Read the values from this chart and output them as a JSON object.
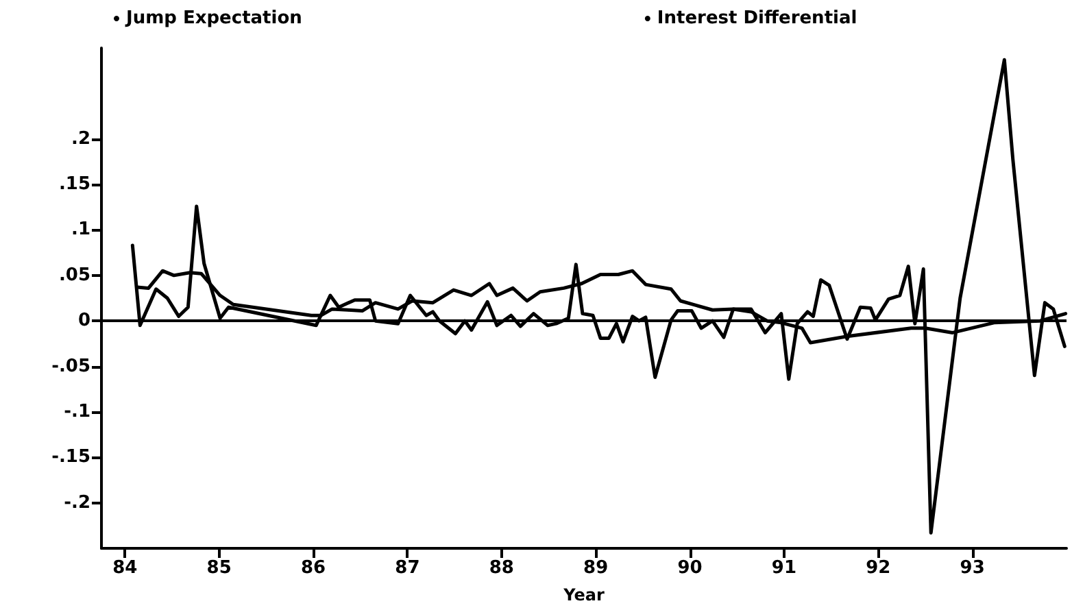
{
  "chart_data": {
    "type": "line",
    "xlabel": "Year",
    "legend": "top",
    "marker": "none",
    "line_style": "solid",
    "grid": false,
    "xlim": [
      83.75,
      94
    ],
    "xticks": [
      {
        "value": 84,
        "label": "84"
      },
      {
        "value": 85,
        "label": "85"
      },
      {
        "value": 86,
        "label": "86"
      },
      {
        "value": 87,
        "label": "87"
      },
      {
        "value": 88,
        "label": "88"
      },
      {
        "value": 89,
        "label": "89"
      },
      {
        "value": 90,
        "label": "90"
      },
      {
        "value": 91,
        "label": "91"
      },
      {
        "value": 92,
        "label": "92"
      },
      {
        "value": 93,
        "label": "93"
      }
    ],
    "ylim": [
      -0.25,
      0.3
    ],
    "yticks": [
      {
        "value": -0.2,
        "label": "-.2"
      },
      {
        "value": -0.15,
        "label": "-.15"
      },
      {
        "value": -0.1,
        "label": "-.1"
      },
      {
        "value": -0.05,
        "label": "-.05"
      },
      {
        "value": 0,
        "label": "0"
      },
      {
        "value": 0.05,
        "label": ".05"
      },
      {
        "value": 0.1,
        "label": ".1"
      },
      {
        "value": 0.15,
        "label": ".15"
      },
      {
        "value": 0.2,
        "label": ".2"
      }
    ],
    "ref_lines": [
      {
        "axis": "y",
        "value": 0,
        "label": null,
        "color": "#000000"
      }
    ],
    "series": [
      {
        "name": "Jump Expectation",
        "color": "#000000",
        "x": [
          84.08,
          84.16,
          84.33,
          84.45,
          84.57,
          84.67,
          84.76,
          84.84,
          85.01,
          85.1,
          86.03,
          86.18,
          86.27,
          86.44,
          86.6,
          86.66,
          86.9,
          87.03,
          87.2,
          87.27,
          87.34,
          87.51,
          87.61,
          87.68,
          87.85,
          87.95,
          88.1,
          88.2,
          88.34,
          88.49,
          88.58,
          88.71,
          88.79,
          88.86,
          88.97,
          89.05,
          89.14,
          89.22,
          89.29,
          89.39,
          89.46,
          89.53,
          89.63,
          89.8,
          89.87,
          90.02,
          90.12,
          90.24,
          90.36,
          90.46,
          90.65,
          90.8,
          90.97,
          91.05,
          91.14,
          91.25,
          91.31,
          91.39,
          91.48,
          91.67,
          91.81,
          91.92,
          91.97,
          92.11,
          92.23,
          92.32,
          92.39,
          92.48,
          92.56,
          92.87,
          93.34,
          93.43,
          93.66,
          93.77,
          93.86,
          93.98
        ],
        "values": [
          0.083,
          -0.005,
          0.035,
          0.025,
          0.005,
          0.015,
          0.126,
          0.063,
          0.003,
          0.015,
          -0.005,
          0.028,
          0.015,
          0.023,
          0.023,
          0,
          -0.003,
          0.028,
          0.006,
          0.01,
          0,
          -0.014,
          0,
          -0.01,
          0.021,
          -0.005,
          0.006,
          -0.006,
          0.008,
          -0.005,
          -0.003,
          0.003,
          0.062,
          0.008,
          0.006,
          -0.019,
          -0.019,
          -0.003,
          -0.023,
          0.005,
          0,
          0.004,
          -0.062,
          0.001,
          0.011,
          0.011,
          -0.008,
          0,
          -0.018,
          0.013,
          0.013,
          -0.013,
          0.008,
          -0.064,
          -0.003,
          0.01,
          0.005,
          0.045,
          0.039,
          -0.02,
          0.015,
          0.014,
          0.001,
          0.024,
          0.028,
          0.06,
          -0.003,
          0.057,
          -0.233,
          0.025,
          0.287,
          0.178,
          -0.06,
          0.02,
          0.013,
          -0.028
        ]
      },
      {
        "name": "Interest Differential",
        "color": "#000000",
        "x": [
          84.13,
          84.25,
          84.4,
          84.52,
          84.69,
          84.81,
          85.01,
          85.15,
          85.98,
          86.08,
          86.2,
          86.37,
          86.52,
          86.66,
          86.9,
          87.05,
          87.27,
          87.49,
          87.68,
          87.87,
          87.95,
          88.12,
          88.27,
          88.41,
          88.66,
          88.85,
          89.05,
          89.24,
          89.39,
          89.53,
          89.8,
          89.9,
          90.07,
          90.24,
          90.46,
          90.65,
          90.82,
          90.97,
          91.19,
          91.28,
          91.67,
          92.35,
          92.5,
          92.79,
          93.23,
          93.72,
          93.99
        ],
        "values": [
          0.037,
          0.036,
          0.055,
          0.05,
          0.053,
          0.052,
          0.028,
          0.018,
          0.006,
          0.006,
          0.013,
          0.012,
          0.011,
          0.02,
          0.013,
          0.022,
          0.02,
          0.034,
          0.028,
          0.041,
          0.028,
          0.036,
          0.022,
          0.032,
          0.036,
          0.041,
          0.051,
          0.051,
          0.055,
          0.04,
          0.035,
          0.022,
          0.017,
          0.012,
          0.013,
          0.01,
          0,
          -0.002,
          -0.008,
          -0.024,
          -0.017,
          -0.008,
          -0.008,
          -0.013,
          -0.002,
          0,
          0.008
        ]
      }
    ]
  }
}
